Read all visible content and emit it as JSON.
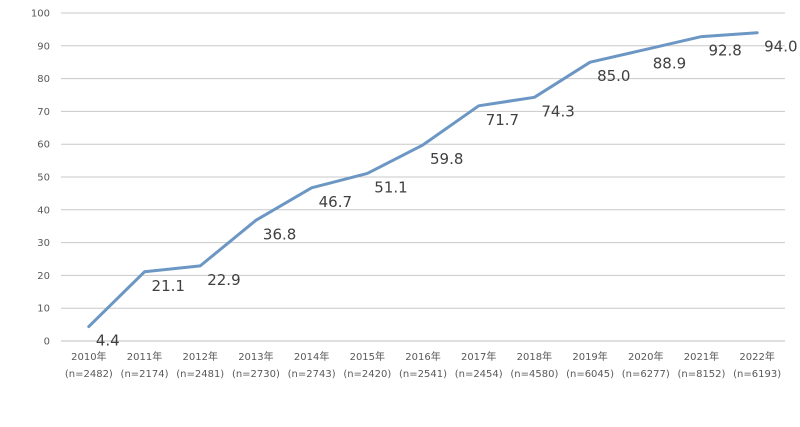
{
  "chart_data": {
    "type": "line",
    "title": "",
    "xlabel": "",
    "ylabel": "",
    "ylim": [
      0,
      100
    ],
    "yticks": [
      "0",
      "10",
      "20",
      "30",
      "40",
      "50",
      "60",
      "70",
      "80",
      "90",
      "100"
    ],
    "grid": true,
    "categories": [
      {
        "year": "2010年",
        "n": "(n=2482)"
      },
      {
        "year": "2011年",
        "n": "(n=2174)"
      },
      {
        "year": "2012年",
        "n": "(n=2481)"
      },
      {
        "year": "2013年",
        "n": "(n=2730)"
      },
      {
        "year": "2014年",
        "n": "(n=2743)"
      },
      {
        "year": "2015年",
        "n": "(n=2420)"
      },
      {
        "year": "2016年",
        "n": "(n=2541)"
      },
      {
        "year": "2017年",
        "n": "(n=2454)"
      },
      {
        "year": "2018年",
        "n": "(n=4580)"
      },
      {
        "year": "2019年",
        "n": "(n=6045)"
      },
      {
        "year": "2020年",
        "n": "(n=6277)"
      },
      {
        "year": "2021年",
        "n": "(n=8152)"
      },
      {
        "year": "2022年",
        "n": "(n=6193)"
      }
    ],
    "values": [
      4.4,
      21.1,
      22.9,
      36.8,
      46.7,
      51.1,
      59.8,
      71.7,
      74.3,
      85.0,
      88.9,
      92.8,
      94.0
    ],
    "value_labels": [
      "4.4",
      "21.1",
      "22.9",
      "36.8",
      "46.7",
      "51.1",
      "59.8",
      "71.7",
      "74.3",
      "85.0",
      "88.9",
      "92.8",
      "94.0"
    ],
    "series_color": "#6c97c4"
  }
}
